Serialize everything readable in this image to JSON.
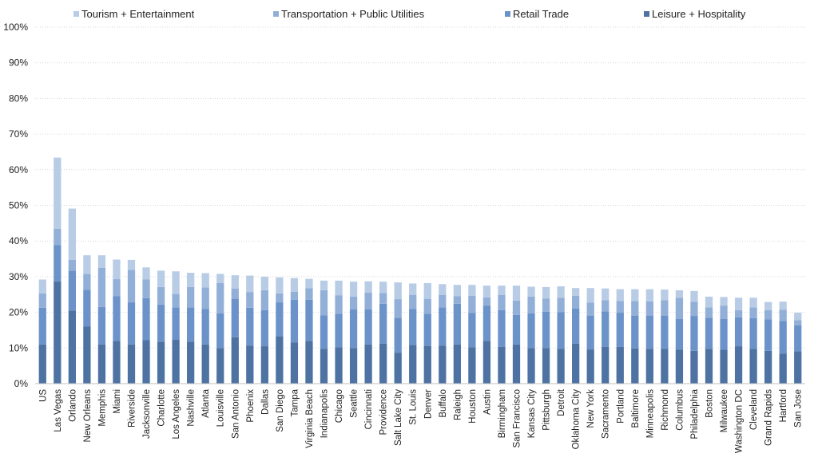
{
  "chart_data": {
    "type": "bar",
    "stacked": true,
    "title": "",
    "xlabel": "",
    "ylabel": "",
    "ylim": [
      0,
      100
    ],
    "y_ticks": [
      "0%",
      "10%",
      "20%",
      "30%",
      "40%",
      "50%",
      "60%",
      "70%",
      "80%",
      "90%",
      "100%"
    ],
    "grid": true,
    "legend_position": "top",
    "categories": [
      "US",
      "Las Vegas",
      "Orlando",
      "New Orleans",
      "Memphis",
      "Miami",
      "Riverside",
      "Jacksonville",
      "Charlotte",
      "Los Angeles",
      "Nashville",
      "Atlanta",
      "Louisville",
      "San Antonio",
      "Phoenix",
      "Dallas",
      "San Diego",
      "Tampa",
      "Virginia Beach",
      "Indianapolis",
      "Chicago",
      "Seattle",
      "Cincinnati",
      "Providence",
      "Salt Lake City",
      "St. Louis",
      "Denver",
      "Buffalo",
      "Raleigh",
      "Houston",
      "Austin",
      "Birmingham",
      "San Francisco",
      "Kansas City",
      "Pittsburgh",
      "Detroit",
      "Oklahoma City",
      "New York",
      "Sacramento",
      "Portland",
      "Baltimore",
      "Minneapolis",
      "Richmond",
      "Columbus",
      "Philadelphia",
      "Boston",
      "Milwaukee",
      "Washington DC",
      "Cleveland",
      "Grand Rapids",
      "Hartford",
      "San Jose"
    ],
    "series": [
      {
        "name": "Leisure + Hospitality",
        "color": "#4e73a3",
        "values": [
          11,
          28.7,
          20.5,
          16,
          11,
          12,
          11,
          12.2,
          11.8,
          12.3,
          11.8,
          11,
          10,
          13,
          10.7,
          10.5,
          13.2,
          11.6,
          12,
          9.8,
          10.2,
          10,
          11,
          11.2,
          8.7,
          10.9,
          10.6,
          10.7,
          11,
          10.2,
          12,
          10.3,
          11,
          10,
          10,
          9.8,
          11.2,
          9.6,
          10.3,
          10.3,
          9.9,
          9.8,
          9.8,
          9.5,
          9.2,
          9.8,
          9.5,
          10.5,
          9.8,
          9.2,
          8.4,
          9.1
        ]
      },
      {
        "name": "Retail Trade",
        "color": "#6b93ca",
        "values": [
          10.3,
          10.2,
          11.2,
          10.3,
          10.5,
          12.5,
          11.8,
          11.8,
          10.4,
          9.1,
          9.6,
          10,
          9.7,
          10.8,
          10.6,
          10.1,
          9.6,
          11.9,
          11.5,
          9.4,
          9.4,
          10.8,
          9.8,
          11.2,
          9.8,
          10.1,
          9,
          10.7,
          11.4,
          9.6,
          9.9,
          10.3,
          8.3,
          9.7,
          10.2,
          10.3,
          9.9,
          9.5,
          10,
          9.6,
          9.2,
          9.3,
          9.3,
          8.7,
          9.8,
          8.7,
          8.7,
          8.1,
          8.6,
          8.8,
          9.2,
          7.3
        ]
      },
      {
        "name": "Transportation + Public Utilities",
        "color": "#92afd8",
        "values": [
          4,
          4.5,
          3,
          4.5,
          11,
          4.8,
          9.1,
          5.2,
          4.9,
          3.8,
          5.7,
          6,
          8.5,
          2.9,
          4.4,
          5.6,
          2.5,
          2.3,
          3.3,
          7,
          5.2,
          3.6,
          4.7,
          3,
          5.2,
          3.9,
          4.2,
          3.5,
          2.1,
          4.8,
          2.3,
          4.3,
          4,
          4.7,
          3.7,
          4,
          3.5,
          3.6,
          3.1,
          3.3,
          4.1,
          4,
          4.3,
          5.9,
          4,
          2.9,
          3.7,
          2,
          3,
          2.6,
          3.1,
          1.4
        ]
      },
      {
        "name": "Tourism + Entertainment",
        "color": "#b8cce6",
        "values": [
          3.9,
          20,
          14.4,
          5.2,
          3.5,
          5.5,
          2.8,
          3.4,
          4.6,
          6.3,
          4,
          4,
          2.6,
          3.7,
          4.6,
          3.8,
          4.5,
          3.8,
          2.6,
          2.7,
          4.1,
          4.2,
          3.2,
          3.2,
          4.7,
          3.2,
          4.4,
          3,
          3.2,
          3.1,
          3.3,
          2.6,
          4.2,
          2.8,
          3.2,
          3.2,
          2.2,
          4.1,
          3.3,
          3.3,
          3.3,
          3.4,
          3,
          2.1,
          3,
          3,
          2.4,
          3.5,
          2.7,
          2.3,
          2.3,
          2.1
        ]
      }
    ]
  }
}
